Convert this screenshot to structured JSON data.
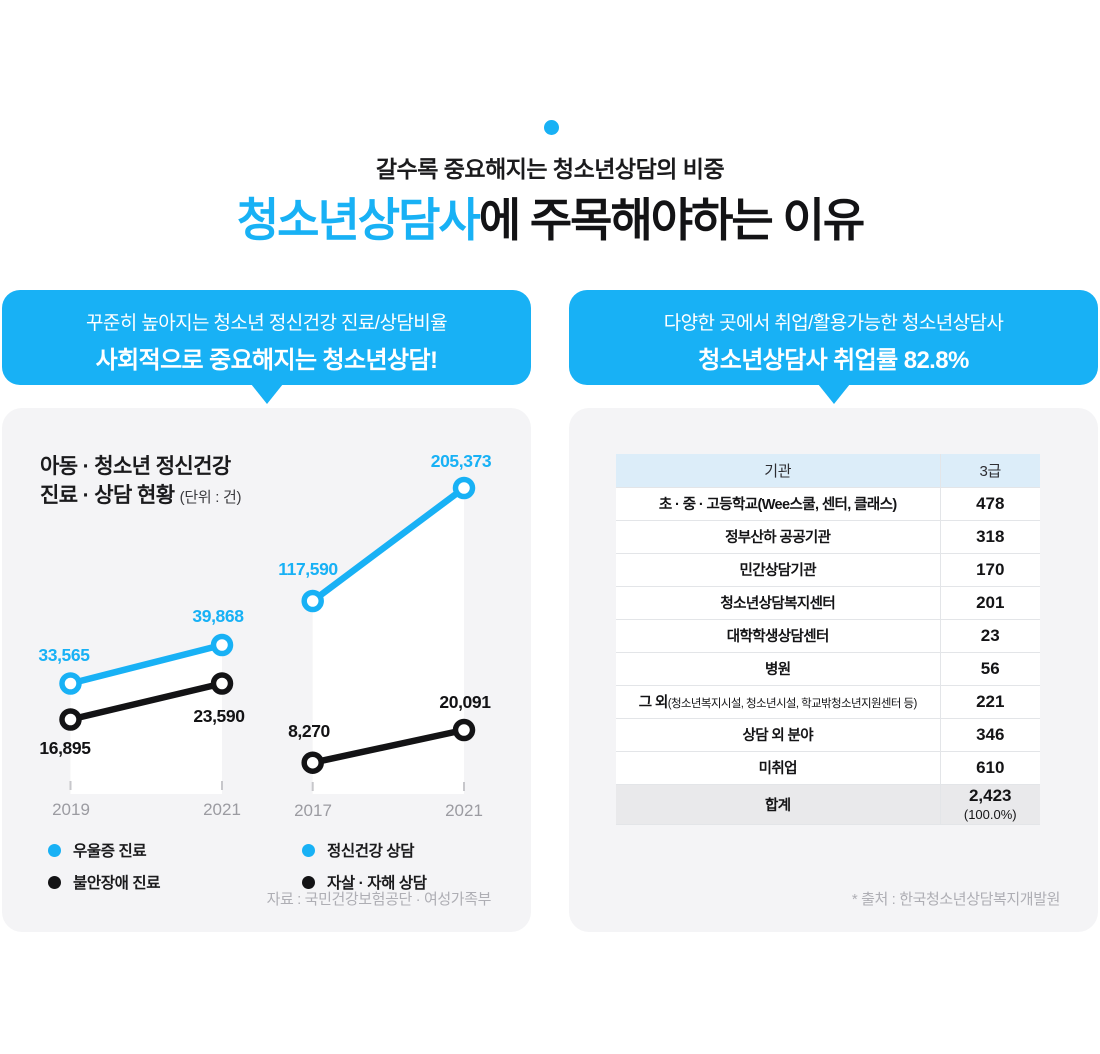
{
  "header": {
    "subtitle": "갈수록 중요해지는 청소년상담의 비중",
    "title_highlight": "청소년상담사",
    "title_rest": "에 주목해야하는 이유"
  },
  "accent_color": "#18b1f5",
  "left": {
    "callout": {
      "line1": "꾸준히 높아지는 청소년 정신건강 진료/상담비율",
      "line2": "사회적으로 중요해지는 청소년상담!"
    },
    "chart_title_line1": "아동 · 청소년 정신건강",
    "chart_title_line2": "진료 · 상담 현황",
    "chart_unit": "(단위 : 건)",
    "source": "자료 : 국민건강보험공단 · 여성가족부"
  },
  "right": {
    "callout": {
      "line1": "다양한 곳에서 취업/활용가능한 청소년상담사",
      "line2": "청소년상담사 취업률 82.8%"
    },
    "table": {
      "headers": [
        "기관",
        "3급"
      ],
      "rows": [
        {
          "label": "초 · 중 · 고등학교(Wee스쿨, 센터, 클래스)",
          "value": 478
        },
        {
          "label": "정부산하 공공기관",
          "value": 318
        },
        {
          "label": "민간상담기관",
          "value": 170
        },
        {
          "label": "청소년상담복지센터",
          "value": 201
        },
        {
          "label": "대학학생상담센터",
          "value": 23
        },
        {
          "label": "병원",
          "value": 56
        },
        {
          "label": "그 외",
          "label_note": "(청소년복지시설, 청소년시설, 학교밖청소년지원센터 등)",
          "value": 221
        },
        {
          "label": "상담 외 분야",
          "value": 346
        },
        {
          "label": "미취업",
          "value": 610
        },
        {
          "label": "합계",
          "value": 2423,
          "value_note": "(100.0%)",
          "is_total": true
        }
      ]
    },
    "source": "* 출처 : 한국청소년상담복지개발원"
  },
  "chart_data": [
    {
      "type": "line",
      "title": "아동 · 청소년 정신건강 진료 · 상담 현황",
      "unit": "건",
      "x": [
        "2019",
        "2021"
      ],
      "series": [
        {
          "name": "우울증 진료",
          "color": "#18b1f5",
          "values": [
            33565,
            39868
          ]
        },
        {
          "name": "불안장애 진료",
          "color": "#131315",
          "values": [
            16895,
            23590
          ]
        }
      ],
      "legend_position": "bottom",
      "grid": false,
      "note": "stylized two-point trend lines, not to scale"
    },
    {
      "type": "line",
      "title": "아동 · 청소년 정신건강 진료 · 상담 현황",
      "unit": "건",
      "x": [
        "2017",
        "2021"
      ],
      "series": [
        {
          "name": "정신건강 상담",
          "color": "#18b1f5",
          "values": [
            117590,
            205373
          ]
        },
        {
          "name": "자살 · 자해 상담",
          "color": "#131315",
          "values": [
            8270,
            20091
          ]
        }
      ],
      "legend_position": "bottom",
      "grid": false,
      "note": "stylized two-point trend lines, not to scale"
    }
  ]
}
